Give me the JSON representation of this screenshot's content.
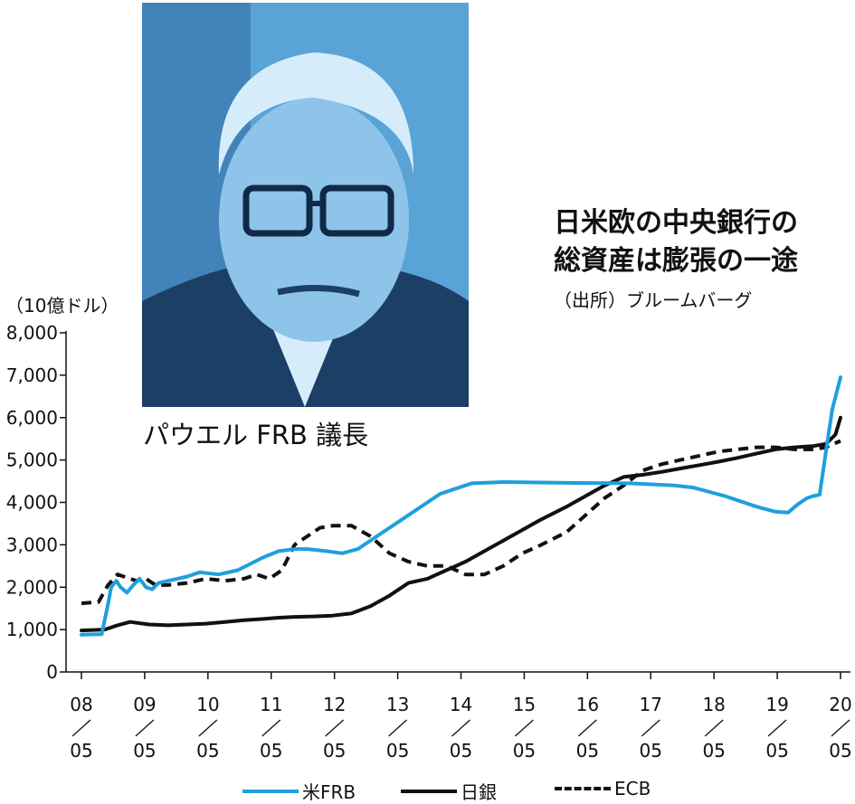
{
  "photo": {
    "caption": "パウエル FRB 議長",
    "colors": {
      "bg": "#5aa3d6",
      "dark": "#1c3f66",
      "mid": "#3f7fb5",
      "light": "#b8dbf2"
    }
  },
  "chart_data": {
    "type": "line",
    "title_lines": [
      "日米欧の中央銀行の",
      "総資産は膨張の一途"
    ],
    "source": "（出所）ブルームバーグ",
    "ylabel": "（10億ドル）",
    "ylim": [
      0,
      8000
    ],
    "yticks": [
      0,
      1000,
      2000,
      3000,
      4000,
      5000,
      6000,
      7000,
      8000
    ],
    "ytick_labels": [
      "0",
      "1,000",
      "2,000",
      "3,000",
      "4,000",
      "5,000",
      "6,000",
      "7,000",
      "8,000"
    ],
    "xlim": [
      2008.33,
      2020.33
    ],
    "xticks": [
      {
        "year": "08",
        "month": "05"
      },
      {
        "year": "09",
        "month": "05"
      },
      {
        "year": "10",
        "month": "05"
      },
      {
        "year": "11",
        "month": "05"
      },
      {
        "year": "12",
        "month": "05"
      },
      {
        "year": "13",
        "month": "05"
      },
      {
        "year": "14",
        "month": "05"
      },
      {
        "year": "15",
        "month": "05"
      },
      {
        "year": "16",
        "month": "05"
      },
      {
        "year": "17",
        "month": "05"
      },
      {
        "year": "18",
        "month": "05"
      },
      {
        "year": "19",
        "month": "05"
      },
      {
        "year": "20",
        "month": "05"
      }
    ],
    "grid": false,
    "legend_position": "bottom",
    "series": [
      {
        "name": "米FRB",
        "color": "#1ea0dc",
        "style": "solid",
        "x": [
          2008.33,
          2008.65,
          2008.75,
          2008.8,
          2008.88,
          2008.95,
          2009.05,
          2009.15,
          2009.25,
          2009.35,
          2009.45,
          2009.55,
          2009.7,
          2009.85,
          2010.0,
          2010.2,
          2010.5,
          2010.8,
          2011.0,
          2011.2,
          2011.45,
          2011.7,
          2011.9,
          2012.2,
          2012.45,
          2012.7,
          2013.0,
          2013.5,
          2014.0,
          2014.5,
          2015.0,
          2016.0,
          2017.0,
          2017.7,
          2018.0,
          2018.5,
          2019.0,
          2019.3,
          2019.5,
          2019.65,
          2019.8,
          2019.9,
          2020.0,
          2020.1,
          2020.2,
          2020.33
        ],
        "y": [
          880,
          890,
          1600,
          2000,
          2150,
          2000,
          1870,
          2050,
          2200,
          2000,
          1950,
          2100,
          2150,
          2200,
          2250,
          2350,
          2300,
          2400,
          2550,
          2700,
          2850,
          2900,
          2900,
          2850,
          2800,
          2900,
          3200,
          3700,
          4200,
          4450,
          4480,
          4460,
          4450,
          4400,
          4350,
          4150,
          3900,
          3780,
          3760,
          3950,
          4100,
          4150,
          4180,
          5200,
          6200,
          6950
        ]
      },
      {
        "name": "日銀",
        "color": "#111111",
        "style": "solid",
        "x": [
          2008.33,
          2008.7,
          2008.9,
          2009.1,
          2009.4,
          2009.7,
          2010.0,
          2010.3,
          2010.6,
          2010.9,
          2011.2,
          2011.45,
          2011.7,
          2012.0,
          2012.3,
          2012.6,
          2012.9,
          2013.2,
          2013.5,
          2013.8,
          2014.1,
          2014.4,
          2014.7,
          2015.0,
          2015.3,
          2015.6,
          2016.0,
          2016.3,
          2016.6,
          2016.9,
          2017.2,
          2017.5,
          2017.8,
          2018.1,
          2018.4,
          2018.7,
          2019.0,
          2019.3,
          2019.6,
          2019.9,
          2020.1,
          2020.25,
          2020.33
        ],
        "y": [
          980,
          1000,
          1100,
          1180,
          1120,
          1100,
          1120,
          1140,
          1180,
          1220,
          1250,
          1280,
          1300,
          1310,
          1330,
          1380,
          1550,
          1800,
          2100,
          2200,
          2400,
          2600,
          2850,
          3100,
          3350,
          3600,
          3900,
          4150,
          4400,
          4600,
          4650,
          4720,
          4800,
          4880,
          4960,
          5050,
          5150,
          5250,
          5300,
          5330,
          5380,
          5600,
          6000
        ]
      },
      {
        "name": "ECB",
        "color": "#111111",
        "style": "dashed",
        "x": [
          2008.33,
          2008.6,
          2008.75,
          2008.9,
          2009.0,
          2009.2,
          2009.35,
          2009.5,
          2009.7,
          2010.0,
          2010.3,
          2010.6,
          2010.9,
          2011.1,
          2011.3,
          2011.5,
          2011.7,
          2011.9,
          2012.1,
          2012.3,
          2012.6,
          2012.9,
          2013.2,
          2013.5,
          2013.8,
          2014.1,
          2014.4,
          2014.7,
          2015.0,
          2015.3,
          2015.6,
          2016.0,
          2016.3,
          2016.6,
          2016.9,
          2017.2,
          2017.5,
          2017.8,
          2018.1,
          2018.4,
          2018.7,
          2019.0,
          2019.3,
          2019.6,
          2019.9,
          2020.1,
          2020.33
        ],
        "y": [
          1620,
          1650,
          2050,
          2300,
          2250,
          2150,
          2200,
          2050,
          2050,
          2100,
          2200,
          2150,
          2200,
          2300,
          2200,
          2400,
          3000,
          3200,
          3400,
          3450,
          3450,
          3200,
          2800,
          2600,
          2500,
          2500,
          2300,
          2300,
          2500,
          2800,
          3000,
          3300,
          3700,
          4100,
          4400,
          4750,
          4900,
          5000,
          5100,
          5200,
          5250,
          5300,
          5300,
          5250,
          5250,
          5300,
          5450
        ]
      }
    ]
  }
}
